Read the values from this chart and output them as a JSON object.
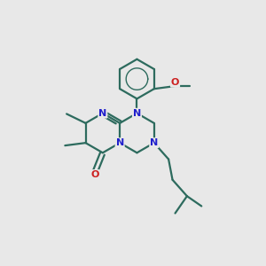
{
  "background_color": "#e8e8e8",
  "bond_color": "#2d6b5e",
  "N_color": "#2020cc",
  "O_color": "#cc2020",
  "figsize": [
    3.0,
    3.0
  ],
  "dpi": 100,
  "xlim": [
    0,
    10
  ],
  "ylim": [
    0,
    10
  ]
}
